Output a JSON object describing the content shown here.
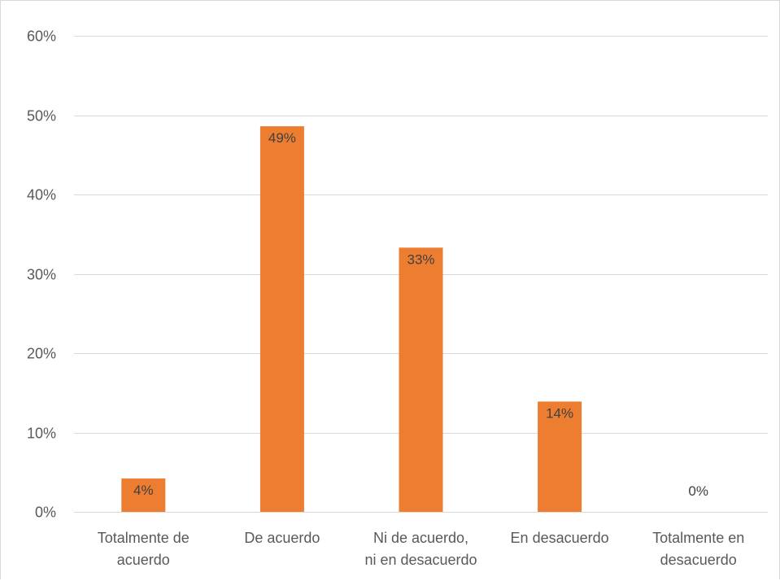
{
  "chart_data": {
    "type": "bar",
    "categories": [
      [
        "Totalmente de",
        "acuerdo"
      ],
      [
        "De acuerdo"
      ],
      [
        "Ni de acuerdo,",
        "ni en desacuerdo"
      ],
      [
        "En desacuerdo"
      ],
      [
        "Totalmente en",
        "desacuerdo"
      ]
    ],
    "values": [
      4.2,
      48.6,
      33.3,
      13.9,
      0
    ],
    "data_labels": [
      "4%",
      "49%",
      "33%",
      "14%",
      "0%"
    ],
    "y_ticks": [
      "0%",
      "10%",
      "20%",
      "30%",
      "40%",
      "50%",
      "60%"
    ],
    "y_tick_values": [
      0,
      10,
      20,
      30,
      40,
      50,
      60
    ],
    "ylim": [
      0,
      60
    ],
    "grid": true,
    "legend": "none",
    "bar_color": "#ED7D31",
    "grid_color": "#d9d9d9",
    "title": "",
    "xlabel": "",
    "ylabel": ""
  }
}
